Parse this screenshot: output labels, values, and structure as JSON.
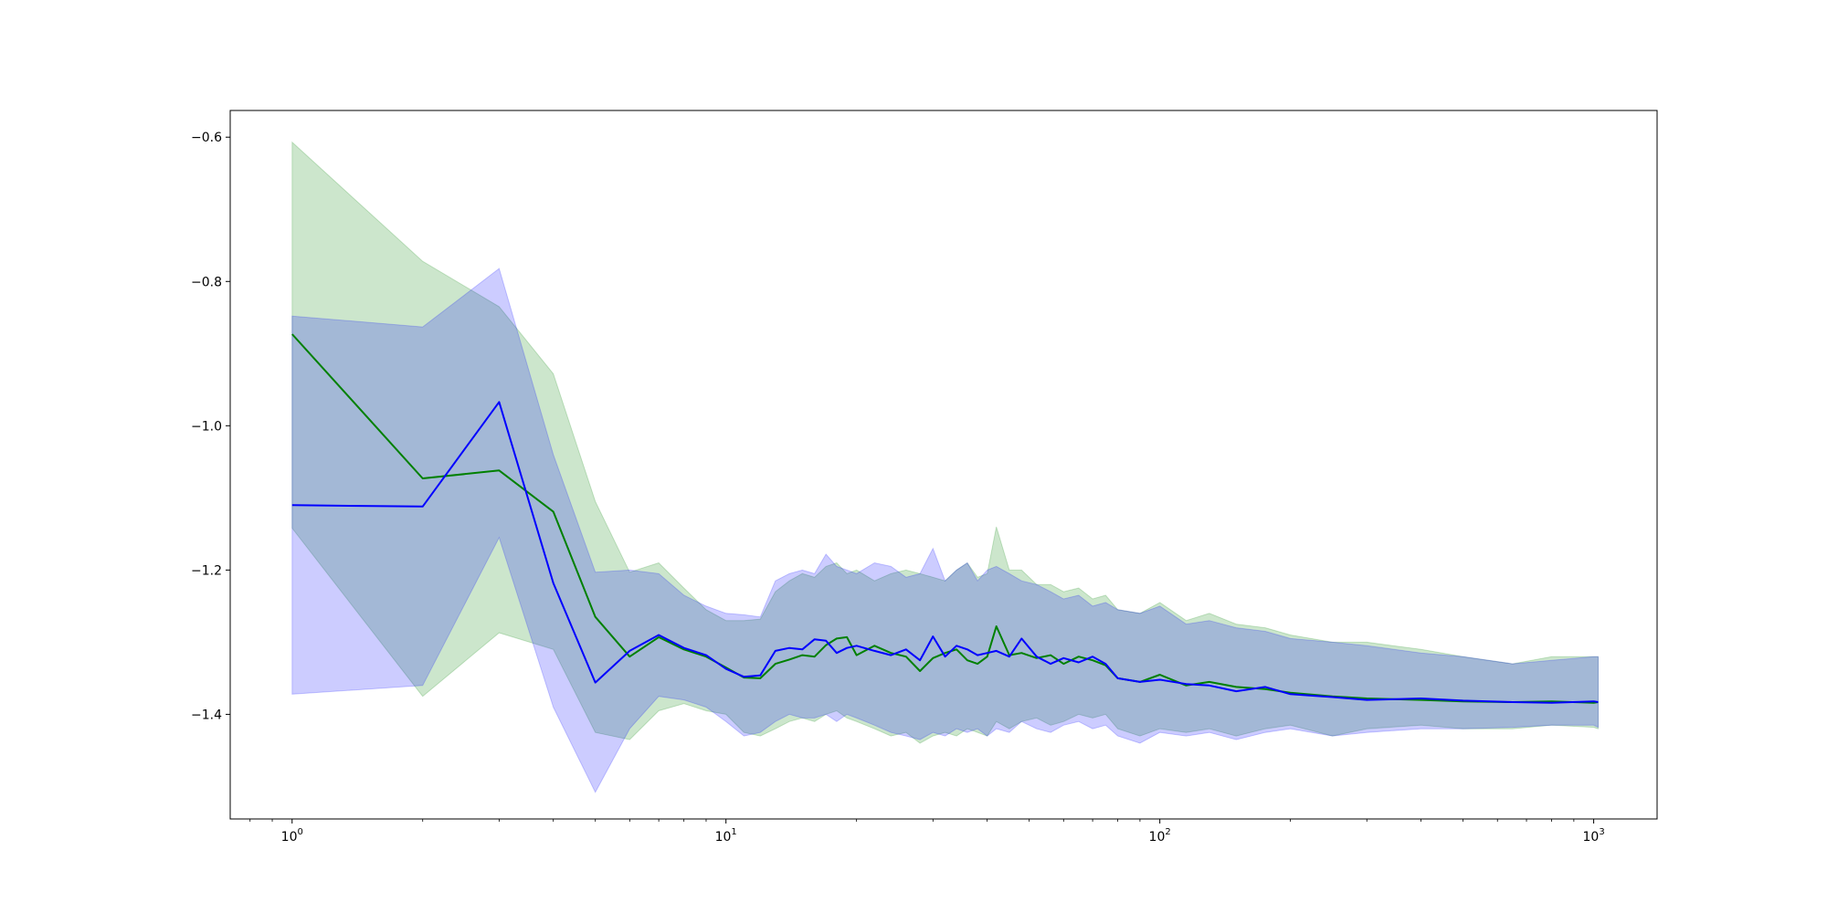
{
  "chart_data": {
    "type": "line",
    "title": "",
    "xlabel": "",
    "ylabel": "",
    "xscale": "log",
    "xlim": [
      0.72,
      1400
    ],
    "ylim": [
      -1.545,
      -0.563
    ],
    "grid": false,
    "legend": null,
    "x_ticks": [
      {
        "value": 1,
        "base": "10",
        "exp": "0"
      },
      {
        "value": 10,
        "base": "10",
        "exp": "1"
      },
      {
        "value": 100,
        "base": "10",
        "exp": "2"
      },
      {
        "value": 1000,
        "base": "10",
        "exp": "3"
      }
    ],
    "y_ticks": [
      {
        "value": -0.6,
        "label": "−0.6"
      },
      {
        "value": -0.8,
        "label": "−0.8"
      },
      {
        "value": -1.0,
        "label": "−1.0"
      },
      {
        "value": -1.2,
        "label": "−1.2"
      },
      {
        "value": -1.4,
        "label": "−1.4"
      }
    ],
    "series": [
      {
        "color": "#008000",
        "band_color": "#008000",
        "band_opacity": 0.2,
        "x": [
          1,
          2,
          3,
          4,
          5,
          6,
          7,
          8,
          9,
          10,
          11,
          12,
          13,
          14,
          15,
          16,
          17,
          18,
          19,
          20,
          22,
          24,
          26,
          28,
          30,
          32,
          34,
          36,
          38,
          40,
          42,
          45,
          48,
          52,
          56,
          60,
          65,
          70,
          75,
          80,
          90,
          100,
          115,
          130,
          150,
          175,
          200,
          250,
          300,
          400,
          500,
          650,
          800,
          1000,
          1024
        ],
        "y": [
          -0.873,
          -1.073,
          -1.062,
          -1.119,
          -1.265,
          -1.32,
          -1.293,
          -1.31,
          -1.32,
          -1.335,
          -1.349,
          -1.35,
          -1.33,
          -1.324,
          -1.318,
          -1.32,
          -1.304,
          -1.295,
          -1.293,
          -1.318,
          -1.305,
          -1.315,
          -1.32,
          -1.34,
          -1.322,
          -1.315,
          -1.31,
          -1.325,
          -1.33,
          -1.32,
          -1.278,
          -1.318,
          -1.315,
          -1.322,
          -1.318,
          -1.33,
          -1.32,
          -1.325,
          -1.332,
          -1.35,
          -1.355,
          -1.345,
          -1.36,
          -1.355,
          -1.362,
          -1.365,
          -1.37,
          -1.375,
          -1.378,
          -1.38,
          -1.382,
          -1.383,
          -1.382,
          -1.384,
          -1.383
        ],
        "lower": [
          -1.142,
          -1.375,
          -1.287,
          -1.31,
          -1.425,
          -1.435,
          -1.395,
          -1.385,
          -1.395,
          -1.4,
          -1.425,
          -1.43,
          -1.42,
          -1.41,
          -1.405,
          -1.41,
          -1.4,
          -1.395,
          -1.405,
          -1.41,
          -1.42,
          -1.43,
          -1.425,
          -1.44,
          -1.43,
          -1.425,
          -1.43,
          -1.42,
          -1.425,
          -1.43,
          -1.41,
          -1.42,
          -1.41,
          -1.405,
          -1.415,
          -1.41,
          -1.4,
          -1.405,
          -1.4,
          -1.42,
          -1.43,
          -1.42,
          -1.425,
          -1.42,
          -1.43,
          -1.42,
          -1.415,
          -1.43,
          -1.42,
          -1.415,
          -1.42,
          -1.42,
          -1.415,
          -1.418,
          -1.42
        ],
        "upper": [
          -0.607,
          -0.772,
          -0.835,
          -0.928,
          -1.105,
          -1.203,
          -1.19,
          -1.225,
          -1.255,
          -1.27,
          -1.27,
          -1.268,
          -1.23,
          -1.215,
          -1.205,
          -1.21,
          -1.195,
          -1.19,
          -1.205,
          -1.2,
          -1.215,
          -1.205,
          -1.2,
          -1.205,
          -1.21,
          -1.215,
          -1.2,
          -1.19,
          -1.21,
          -1.205,
          -1.14,
          -1.2,
          -1.2,
          -1.22,
          -1.22,
          -1.23,
          -1.225,
          -1.24,
          -1.235,
          -1.255,
          -1.26,
          -1.245,
          -1.27,
          -1.26,
          -1.275,
          -1.28,
          -1.29,
          -1.3,
          -1.3,
          -1.31,
          -1.32,
          -1.33,
          -1.32,
          -1.32,
          -1.32
        ]
      },
      {
        "color": "#0000ff",
        "band_color": "#0000ff",
        "band_opacity": 0.2,
        "x": [
          1,
          2,
          3,
          4,
          5,
          6,
          7,
          8,
          9,
          10,
          11,
          12,
          13,
          14,
          15,
          16,
          17,
          18,
          19,
          20,
          22,
          24,
          26,
          28,
          30,
          32,
          34,
          36,
          38,
          40,
          42,
          45,
          48,
          52,
          56,
          60,
          65,
          70,
          75,
          80,
          90,
          100,
          115,
          130,
          150,
          175,
          200,
          250,
          300,
          400,
          500,
          650,
          800,
          1000,
          1024
        ],
        "y": [
          -1.11,
          -1.112,
          -0.967,
          -1.218,
          -1.356,
          -1.312,
          -1.29,
          -1.308,
          -1.318,
          -1.337,
          -1.348,
          -1.346,
          -1.312,
          -1.308,
          -1.31,
          -1.296,
          -1.298,
          -1.315,
          -1.308,
          -1.305,
          -1.312,
          -1.318,
          -1.31,
          -1.325,
          -1.292,
          -1.32,
          -1.305,
          -1.31,
          -1.318,
          -1.315,
          -1.312,
          -1.32,
          -1.295,
          -1.32,
          -1.33,
          -1.322,
          -1.328,
          -1.32,
          -1.33,
          -1.35,
          -1.355,
          -1.352,
          -1.358,
          -1.36,
          -1.368,
          -1.362,
          -1.372,
          -1.376,
          -1.38,
          -1.378,
          -1.381,
          -1.383,
          -1.384,
          -1.382,
          -1.383
        ],
        "lower": [
          -1.372,
          -1.36,
          -1.155,
          -1.39,
          -1.508,
          -1.42,
          -1.375,
          -1.38,
          -1.39,
          -1.41,
          -1.43,
          -1.425,
          -1.41,
          -1.4,
          -1.405,
          -1.405,
          -1.4,
          -1.41,
          -1.4,
          -1.405,
          -1.415,
          -1.425,
          -1.43,
          -1.435,
          -1.425,
          -1.43,
          -1.42,
          -1.425,
          -1.42,
          -1.43,
          -1.42,
          -1.425,
          -1.41,
          -1.42,
          -1.425,
          -1.415,
          -1.41,
          -1.42,
          -1.415,
          -1.43,
          -1.44,
          -1.425,
          -1.43,
          -1.425,
          -1.435,
          -1.425,
          -1.42,
          -1.43,
          -1.425,
          -1.42,
          -1.42,
          -1.418,
          -1.415,
          -1.415,
          -1.418
        ],
        "upper": [
          -0.848,
          -0.863,
          -0.782,
          -1.04,
          -1.203,
          -1.2,
          -1.205,
          -1.235,
          -1.25,
          -1.26,
          -1.262,
          -1.265,
          -1.215,
          -1.205,
          -1.2,
          -1.205,
          -1.178,
          -1.195,
          -1.2,
          -1.205,
          -1.19,
          -1.195,
          -1.21,
          -1.205,
          -1.17,
          -1.215,
          -1.2,
          -1.19,
          -1.215,
          -1.2,
          -1.195,
          -1.205,
          -1.215,
          -1.22,
          -1.23,
          -1.24,
          -1.235,
          -1.25,
          -1.245,
          -1.255,
          -1.26,
          -1.25,
          -1.275,
          -1.27,
          -1.28,
          -1.285,
          -1.295,
          -1.3,
          -1.305,
          -1.315,
          -1.32,
          -1.33,
          -1.325,
          -1.32,
          -1.32
        ]
      }
    ]
  }
}
